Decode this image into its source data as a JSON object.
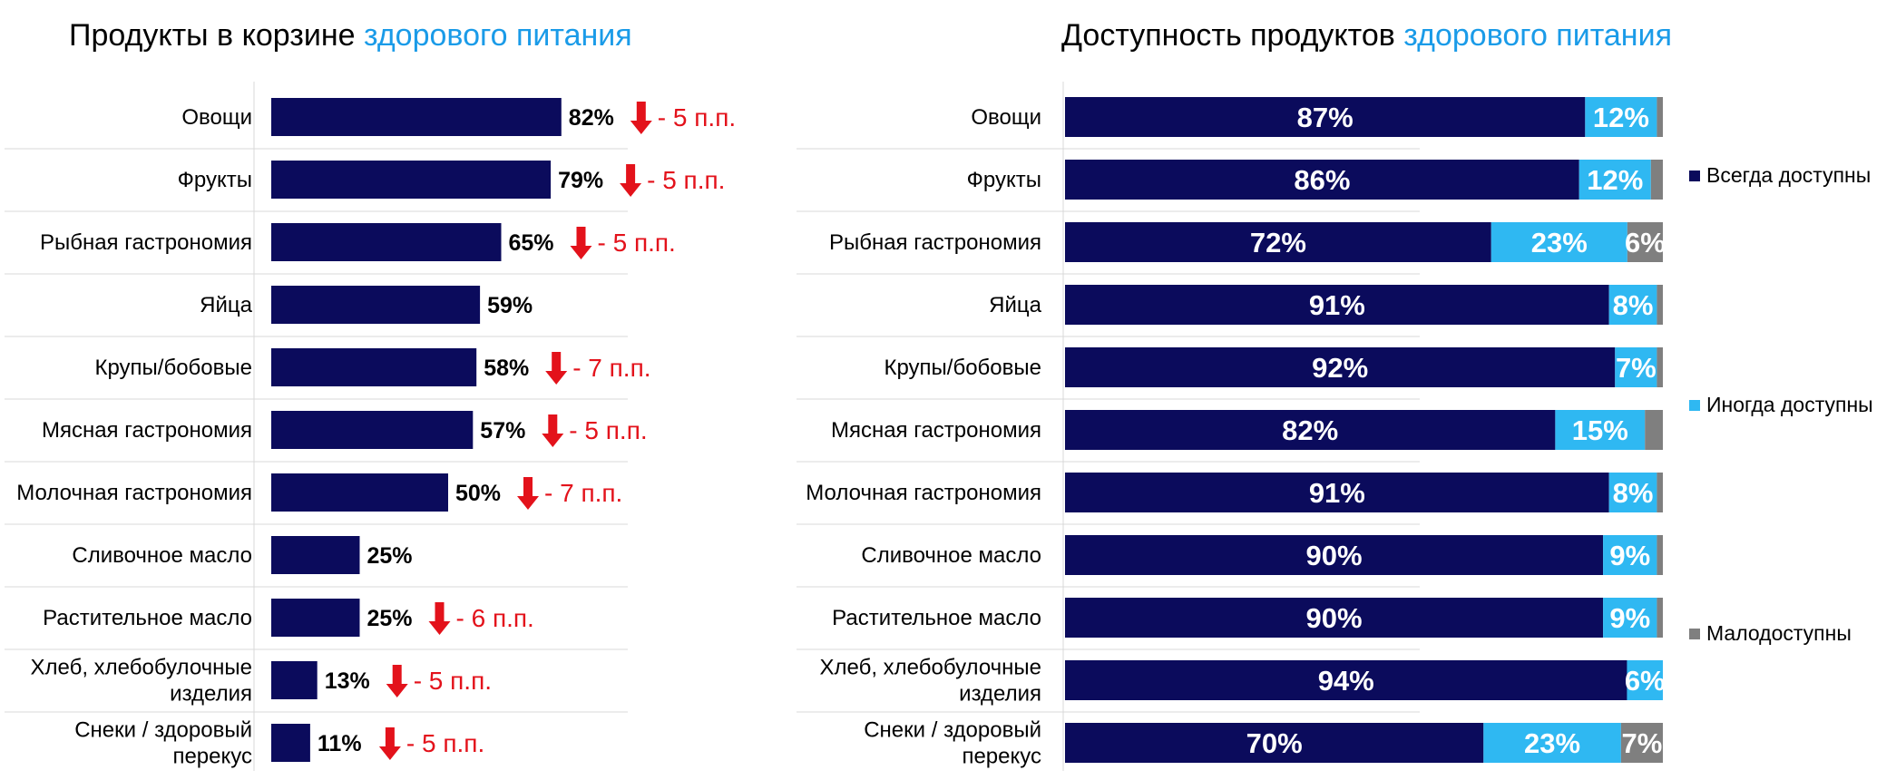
{
  "header": {
    "left_title_main": "Продукты в корзине",
    "left_title_accent": "здорового питания",
    "right_title_main": "Доступность продуктов",
    "right_title_accent": "здорового питания"
  },
  "colors": {
    "navy": "#0b0b5c",
    "light_blue": "#2fb8f2",
    "gray": "#7f7f7f",
    "red": "#e3121b",
    "accent": "#1a9be8"
  },
  "chart_data": [
    {
      "type": "bar",
      "orientation": "horizontal",
      "title": "Продукты в корзине здорового питания",
      "categories": [
        [
          "Овощи"
        ],
        [
          "Фрукты"
        ],
        [
          "Рыбная гастрономия"
        ],
        [
          "Яйца"
        ],
        [
          "Крупы/бобовые"
        ],
        [
          "Мясная гастрономия"
        ],
        [
          "Молочная гастрономия"
        ],
        [
          "Сливочное масло"
        ],
        [
          "Растительное масло"
        ],
        [
          "Хлеб, хлебобулочные",
          "изделия"
        ],
        [
          "Снеки / здоровый",
          "перекус"
        ]
      ],
      "values": [
        82,
        79,
        65,
        59,
        58,
        57,
        50,
        25,
        25,
        13,
        11
      ],
      "value_labels": [
        "82%",
        "79%",
        "65%",
        "59%",
        "58%",
        "57%",
        "50%",
        "25%",
        "25%",
        "13%",
        "11%"
      ],
      "annotations": [
        "- 5 п.п.",
        "- 5 п.п.",
        "- 5 п.п.",
        "",
        "- 7 п.п.",
        "- 5 п.п.",
        "- 7 п.п.",
        "",
        "- 6 п.п.",
        "- 5 п.п.",
        "- 5 п.п."
      ],
      "annotation_icon": "arrow-down-icon",
      "xlim": [
        0,
        100
      ],
      "grid": true
    },
    {
      "type": "bar",
      "orientation": "horizontal",
      "stacked": true,
      "normalized": true,
      "title": "Доступность продуктов здорового питания",
      "categories": [
        [
          "Овощи"
        ],
        [
          "Фрукты"
        ],
        [
          "Рыбная гастрономия"
        ],
        [
          "Яйца"
        ],
        [
          "Крупы/бобовые"
        ],
        [
          "Мясная гастрономия"
        ],
        [
          "Молочная гастрономия"
        ],
        [
          "Сливочное масло"
        ],
        [
          "Растительное масло"
        ],
        [
          "Хлеб, хлебобулочные",
          "изделия"
        ],
        [
          "Снеки / здоровый",
          "перекус"
        ]
      ],
      "series": [
        {
          "name": "Всегда доступны",
          "color": "#0b0b5c",
          "values": [
            87,
            86,
            72,
            91,
            92,
            82,
            91,
            90,
            90,
            94,
            70
          ],
          "labels": [
            "87%",
            "86%",
            "72%",
            "91%",
            "92%",
            "82%",
            "91%",
            "90%",
            "90%",
            "94%",
            "70%"
          ]
        },
        {
          "name": "Иногда доступны",
          "color": "#2fb8f2",
          "values": [
            12,
            12,
            23,
            8,
            7,
            15,
            8,
            9,
            9,
            6,
            23
          ],
          "labels": [
            "12%",
            "12%",
            "23%",
            "8%",
            "7%",
            "15%",
            "8%",
            "9%",
            "9%",
            "6%",
            "23%"
          ]
        },
        {
          "name": "Малодоступны",
          "color": "#7f7f7f",
          "values": [
            1,
            2,
            6,
            1,
            1,
            3,
            1,
            1,
            1,
            0,
            7
          ],
          "labels": [
            "",
            "",
            "6%",
            "",
            "",
            "",
            "",
            "",
            "",
            "",
            "7%"
          ]
        }
      ],
      "legend": "right",
      "grid": true
    }
  ]
}
